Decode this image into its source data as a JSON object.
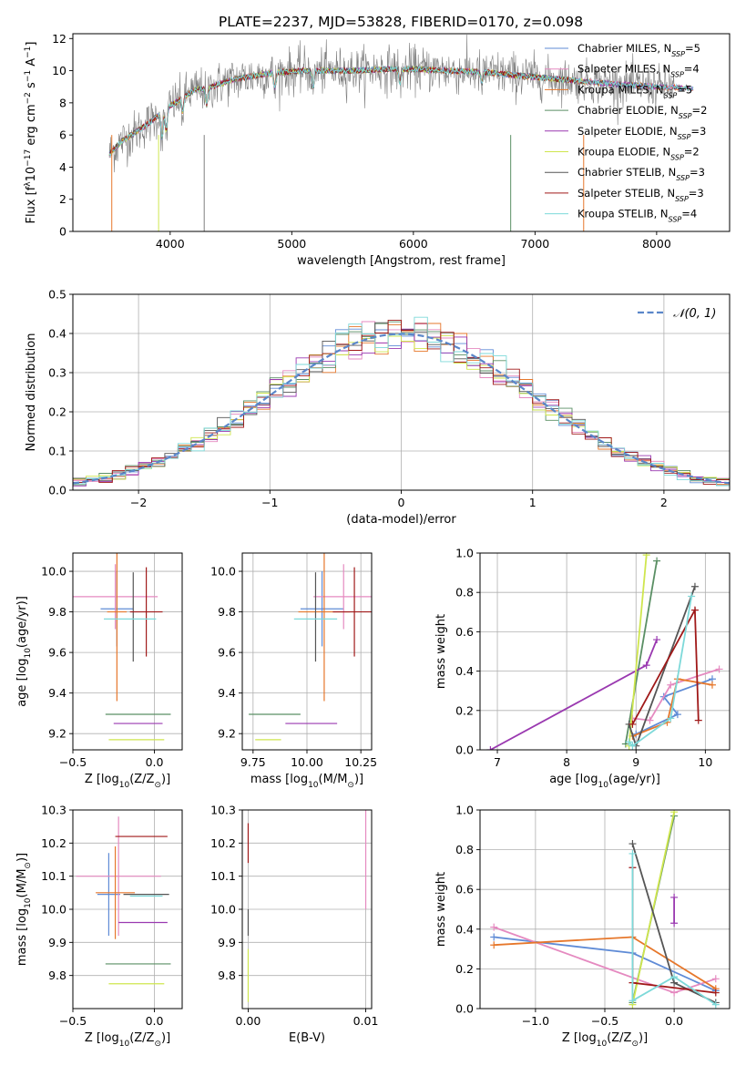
{
  "title": "PLATE=2237, MJD=53828, FIBERID=0170, z=0.098",
  "colors": {
    "Chabrier MILES": "#5f8bd6",
    "Salpeter MILES": "#e58ac0",
    "Kroupa MILES": "#e6772b",
    "Chabrier ELODIE": "#5a8f64",
    "Salpeter ELODIE": "#9a39b0",
    "Kroupa ELODIE": "#cfe64e",
    "Chabrier STELIB": "#555555",
    "Salpeter STELIB": "#a01919",
    "Kroupa STELIB": "#7dd9d9",
    "normal": "#5a86c9"
  },
  "chart_data": [
    {
      "id": "spectrum",
      "type": "line",
      "xlabel": "wavelength [Angstrom, rest frame]",
      "ylabel_parts": [
        "Flux [f",
        "λ",
        "10",
        "−17",
        " erg cm",
        "−2",
        " s",
        "−1",
        " A",
        "−1",
        "]"
      ],
      "xlim": [
        3200,
        8600
      ],
      "ylim": [
        0,
        12.3
      ],
      "xticks": [
        4000,
        5000,
        6000,
        7000,
        8000
      ],
      "yticks": [
        0,
        2,
        4,
        6,
        8,
        10,
        12
      ],
      "legend_position": "right",
      "legend": [
        {
          "name": "Chabrier MILES",
          "nssp": "5",
          "color": "#5f8bd6"
        },
        {
          "name": "Salpeter MILES",
          "nssp": "4",
          "color": "#e58ac0"
        },
        {
          "name": "Kroupa MILES",
          "nssp": "5",
          "color": "#e6772b"
        },
        {
          "name": "Chabrier ELODIE",
          "nssp": "2",
          "color": "#5a8f64"
        },
        {
          "name": "Salpeter ELODIE",
          "nssp": "3",
          "color": "#9a39b0"
        },
        {
          "name": "Kroupa ELODIE",
          "nssp": "2",
          "color": "#cfe64e"
        },
        {
          "name": "Chabrier STELIB",
          "nssp": "3",
          "color": "#555555"
        },
        {
          "name": "Salpeter STELIB",
          "nssp": "3",
          "color": "#a01919"
        },
        {
          "name": "Kroupa STELIB",
          "nssp": "4",
          "color": "#7dd9d9"
        }
      ],
      "continuum": {
        "x": [
          3500,
          3600,
          3700,
          3800,
          3900,
          4000,
          4100,
          4200,
          4300,
          4500,
          4700,
          4900,
          5100,
          5300,
          5500,
          5800,
          6000,
          6300,
          6600,
          7000,
          7300,
          7600,
          8000,
          8300
        ],
        "y": [
          4.8,
          5.6,
          6.1,
          6.6,
          7.2,
          7.8,
          8.3,
          8.8,
          8.9,
          9.4,
          9.7,
          9.9,
          10.0,
          10.0,
          10.0,
          10.1,
          10.1,
          10.0,
          9.9,
          9.6,
          9.4,
          9.2,
          9.0,
          8.9
        ]
      },
      "noise_sigma": 0.7,
      "absorption_lines": [
        {
          "x": 3934,
          "depth": 1.8
        },
        {
          "x": 3968,
          "depth": 1.5
        },
        {
          "x": 4102,
          "depth": 1.0
        },
        {
          "x": 4300,
          "depth": 1.2
        },
        {
          "x": 4861,
          "depth": 1.0
        },
        {
          "x": 5175,
          "depth": 1.2
        },
        {
          "x": 5890,
          "depth": 1.0
        },
        {
          "x": 6563,
          "depth": 0.8
        }
      ]
    },
    {
      "id": "residuals",
      "type": "histogram",
      "xlabel": "(data-model)/error",
      "ylabel": "Normed distribution",
      "xlim": [
        -2.5,
        2.5
      ],
      "ylim": [
        0,
        0.5
      ],
      "xticks": [
        -2,
        -1,
        0,
        1,
        2
      ],
      "yticks": [
        0,
        0.1,
        0.2,
        0.3,
        0.4,
        0.5
      ],
      "bin_width": 0.1,
      "grid": true,
      "legend_position": "top-right",
      "normal_label": "𝒩(0, 1)"
    },
    {
      "id": "age-vs-z",
      "type": "errorbar",
      "xlabel_parts": [
        "Z [log",
        "10",
        "(Z/Z",
        "⊙",
        ")]"
      ],
      "ylabel_parts": [
        "age  [log",
        "10",
        "(age/yr)]"
      ],
      "xlim": [
        -0.5,
        0.17
      ],
      "ylim": [
        9.12,
        10.09
      ],
      "xticks": [
        -0.5,
        0.0
      ],
      "yticks": [
        9.2,
        9.4,
        9.6,
        9.8,
        10.0
      ],
      "grid": true,
      "points": [
        {
          "model": "Chabrier MILES",
          "x": -0.23,
          "xerr": 0.1,
          "y": 9.815,
          "yerr": 0.185
        },
        {
          "model": "Salpeter MILES",
          "x": -0.24,
          "xerr": 0.26,
          "y": 9.875,
          "yerr": 0.16
        },
        {
          "model": "Kroupa MILES",
          "x": -0.23,
          "xerr": 0.06,
          "y": 9.8,
          "yerr": 0.44
        },
        {
          "model": "Chabrier ELODIE",
          "x": -0.1,
          "xerr": 0.2,
          "y": 9.295,
          "yerr": 0.0
        },
        {
          "model": "Salpeter ELODIE",
          "x": -0.1,
          "xerr": 0.15,
          "y": 9.25,
          "yerr": 0.0
        },
        {
          "model": "Kroupa ELODIE",
          "x": -0.11,
          "xerr": 0.17,
          "y": 9.17,
          "yerr": 0.0
        },
        {
          "model": "Chabrier STELIB",
          "x": -0.13,
          "xerr": 0.0,
          "y": 9.775,
          "yerr": 0.22
        },
        {
          "model": "Salpeter STELIB",
          "x": -0.05,
          "xerr": 0.1,
          "y": 9.8,
          "yerr": 0.22
        },
        {
          "model": "Kroupa STELIB",
          "x": -0.15,
          "xerr": 0.16,
          "y": 9.765,
          "yerr": 0.0
        }
      ]
    },
    {
      "id": "age-vs-mass",
      "type": "errorbar",
      "xlabel_parts": [
        "mass [log",
        "10",
        "(M/M",
        "⊙",
        ")]"
      ],
      "ylabel": "",
      "xlim": [
        9.7,
        10.3
      ],
      "ylim": [
        9.12,
        10.09
      ],
      "xticks": [
        9.75,
        10.0,
        10.25
      ],
      "yticks": [
        9.2,
        9.4,
        9.6,
        9.8,
        10.0
      ],
      "grid": true,
      "points": [
        {
          "model": "Chabrier MILES",
          "x": 10.07,
          "xerr": 0.1,
          "y": 9.815,
          "yerr": 0.185
        },
        {
          "model": "Salpeter MILES",
          "x": 10.17,
          "xerr": 0.14,
          "y": 9.875,
          "yerr": 0.16
        },
        {
          "model": "Kroupa MILES",
          "x": 10.08,
          "xerr": 0.12,
          "y": 9.8,
          "yerr": 0.44
        },
        {
          "model": "Chabrier ELODIE",
          "x": 9.85,
          "xerr": 0.12,
          "y": 9.295,
          "yerr": 0.0
        },
        {
          "model": "Salpeter ELODIE",
          "x": 10.02,
          "xerr": 0.12,
          "y": 9.25,
          "yerr": 0.0
        },
        {
          "model": "Kroupa ELODIE",
          "x": 9.82,
          "xerr": 0.06,
          "y": 9.17,
          "yerr": 0.0
        },
        {
          "model": "Chabrier STELIB",
          "x": 10.04,
          "xerr": 0.0,
          "y": 9.775,
          "yerr": 0.22
        },
        {
          "model": "Salpeter STELIB",
          "x": 10.22,
          "xerr": 0.1,
          "y": 9.8,
          "yerr": 0.22
        },
        {
          "model": "Kroupa STELIB",
          "x": 10.04,
          "xerr": 0.1,
          "y": 9.765,
          "yerr": 0.0
        }
      ]
    },
    {
      "id": "mass-weight-vs-age",
      "type": "line",
      "xlabel_parts": [
        "age  [log",
        "10",
        "(age/yr)]"
      ],
      "ylabel": "mass weight",
      "xlim": [
        6.75,
        10.35
      ],
      "ylim": [
        0,
        1.0
      ],
      "xticks": [
        7,
        8,
        9,
        10
      ],
      "yticks": [
        0.0,
        0.2,
        0.4,
        0.6,
        0.8,
        1.0
      ],
      "grid": true,
      "series": [
        {
          "model": "Chabrier MILES",
          "x": [
            9.0,
            9.6,
            9.4,
            10.1
          ],
          "y": [
            0.08,
            0.18,
            0.27,
            0.36
          ]
        },
        {
          "model": "Salpeter MILES",
          "x": [
            8.95,
            9.2,
            9.5,
            10.2
          ],
          "y": [
            0.16,
            0.15,
            0.33,
            0.41
          ]
        },
        {
          "model": "Kroupa MILES",
          "x": [
            8.95,
            9.45,
            9.6,
            10.1
          ],
          "y": [
            0.07,
            0.14,
            0.36,
            0.33
          ]
        },
        {
          "model": "Chabrier ELODIE",
          "x": [
            8.85,
            9.3
          ],
          "y": [
            0.03,
            0.96
          ]
        },
        {
          "model": "Salpeter ELODIE",
          "x": [
            6.9,
            9.15,
            9.3
          ],
          "y": [
            0.0,
            0.43,
            0.56
          ]
        },
        {
          "model": "Kroupa ELODIE",
          "x": [
            8.9,
            9.15
          ],
          "y": [
            0.02,
            0.99
          ]
        },
        {
          "model": "Chabrier STELIB",
          "x": [
            8.9,
            9.0,
            9.85
          ],
          "y": [
            0.13,
            0.02,
            0.83
          ]
        },
        {
          "model": "Salpeter STELIB",
          "x": [
            8.95,
            9.85,
            9.9
          ],
          "y": [
            0.13,
            0.71,
            0.15
          ]
        },
        {
          "model": "Kroupa STELIB",
          "x": [
            8.9,
            8.95,
            9.5,
            9.8
          ],
          "y": [
            0.04,
            0.02,
            0.16,
            0.78
          ]
        }
      ]
    },
    {
      "id": "mass-vs-z",
      "type": "errorbar",
      "xlabel_parts": [
        "Z [log",
        "10",
        "(Z/Z",
        "⊙",
        ")]"
      ],
      "ylabel_parts": [
        "mass [log",
        "10",
        "(M/M",
        "⊙",
        ")]"
      ],
      "xlim": [
        -0.5,
        0.17
      ],
      "ylim": [
        9.7,
        10.3
      ],
      "xticks": [
        -0.5,
        0.0
      ],
      "yticks": [
        9.8,
        9.9,
        10.0,
        10.1,
        10.2,
        10.3
      ],
      "grid": true,
      "points": [
        {
          "model": "Chabrier MILES",
          "x": -0.28,
          "xerr": 0.07,
          "y": 10.045,
          "yerr": 0.125
        },
        {
          "model": "Salpeter MILES",
          "x": -0.22,
          "xerr": 0.26,
          "y": 10.1,
          "yerr": 0.18
        },
        {
          "model": "Kroupa MILES",
          "x": -0.24,
          "xerr": 0.12,
          "y": 10.05,
          "yerr": 0.14
        },
        {
          "model": "Chabrier ELODIE",
          "x": -0.1,
          "xerr": 0.2,
          "y": 9.835,
          "yerr": 0.0
        },
        {
          "model": "Salpeter ELODIE",
          "x": -0.07,
          "xerr": 0.15,
          "y": 9.96,
          "yerr": 0.0
        },
        {
          "model": "Kroupa ELODIE",
          "x": -0.11,
          "xerr": 0.17,
          "y": 9.775,
          "yerr": 0.0
        },
        {
          "model": "Chabrier STELIB",
          "x": -0.05,
          "xerr": 0.14,
          "y": 10.045,
          "yerr": 0.0
        },
        {
          "model": "Salpeter STELIB",
          "x": -0.08,
          "xerr": 0.16,
          "y": 10.22,
          "yerr": 0.0
        },
        {
          "model": "Kroupa STELIB",
          "x": -0.05,
          "xerr": 0.1,
          "y": 10.04,
          "yerr": 0.0
        }
      ]
    },
    {
      "id": "mass-vs-ebv",
      "type": "errorbar",
      "xlabel": "E(B-V)",
      "ylabel": "",
      "xlim": [
        -0.0005,
        0.0105
      ],
      "ylim": [
        9.7,
        10.3
      ],
      "xticks": [
        0.0,
        0.01
      ],
      "yticks": [
        9.8,
        9.9,
        10.0,
        10.1,
        10.2,
        10.3
      ],
      "grid": true,
      "points": [
        {
          "model": "Salpeter STELIB",
          "x": 0.0,
          "xerr": 0.0,
          "y": 10.2,
          "yerr": 0.06
        },
        {
          "model": "Chabrier STELIB",
          "x": 0.0,
          "xerr": 0.0,
          "y": 9.96,
          "yerr": 0.04
        },
        {
          "model": "Kroupa ELODIE",
          "x": 0.0,
          "xerr": 0.0,
          "y": 9.8,
          "yerr": 0.08
        },
        {
          "model": "Salpeter MILES",
          "x": 0.01,
          "xerr": 0.0,
          "y": 10.15,
          "yerr": 0.15
        }
      ]
    },
    {
      "id": "mass-weight-vs-z",
      "type": "line",
      "xlabel_parts": [
        "Z [log",
        "10",
        "(Z/Z",
        "⊙",
        ")]"
      ],
      "ylabel": "mass weight",
      "xlim": [
        -1.4,
        0.4
      ],
      "ylim": [
        0,
        1.0
      ],
      "xticks": [
        -1.0,
        -0.5,
        0.0
      ],
      "yticks": [
        0.0,
        0.2,
        0.4,
        0.6,
        0.8,
        1.0
      ],
      "grid": true,
      "series": [
        {
          "model": "Chabrier MILES",
          "x": [
            -1.3,
            -0.3,
            0.3
          ],
          "y": [
            0.36,
            0.28,
            0.09
          ]
        },
        {
          "model": "Salpeter MILES",
          "x": [
            -1.3,
            0.0,
            0.3
          ],
          "y": [
            0.41,
            0.08,
            0.15
          ]
        },
        {
          "model": "Kroupa MILES",
          "x": [
            -1.3,
            -0.3,
            0.3
          ],
          "y": [
            0.32,
            0.36,
            0.1
          ]
        },
        {
          "model": "Chabrier ELODIE",
          "x": [
            -0.3,
            0.0
          ],
          "y": [
            0.03,
            0.97
          ]
        },
        {
          "model": "Salpeter ELODIE",
          "x": [
            0.0,
            0.0
          ],
          "y": [
            0.43,
            0.56
          ]
        },
        {
          "model": "Kroupa ELODIE",
          "x": [
            -0.3,
            0.0
          ],
          "y": [
            0.02,
            0.99
          ]
        },
        {
          "model": "Chabrier STELIB",
          "x": [
            -0.3,
            0.0,
            0.3
          ],
          "y": [
            0.83,
            0.13,
            0.03
          ]
        },
        {
          "model": "Salpeter STELIB",
          "x": [
            -0.3,
            -0.3,
            0.3
          ],
          "y": [
            0.71,
            0.13,
            0.08
          ]
        },
        {
          "model": "Kroupa STELIB",
          "x": [
            -0.3,
            -0.3,
            0.0,
            0.3
          ],
          "y": [
            0.78,
            0.04,
            0.16,
            0.02
          ]
        }
      ]
    }
  ]
}
